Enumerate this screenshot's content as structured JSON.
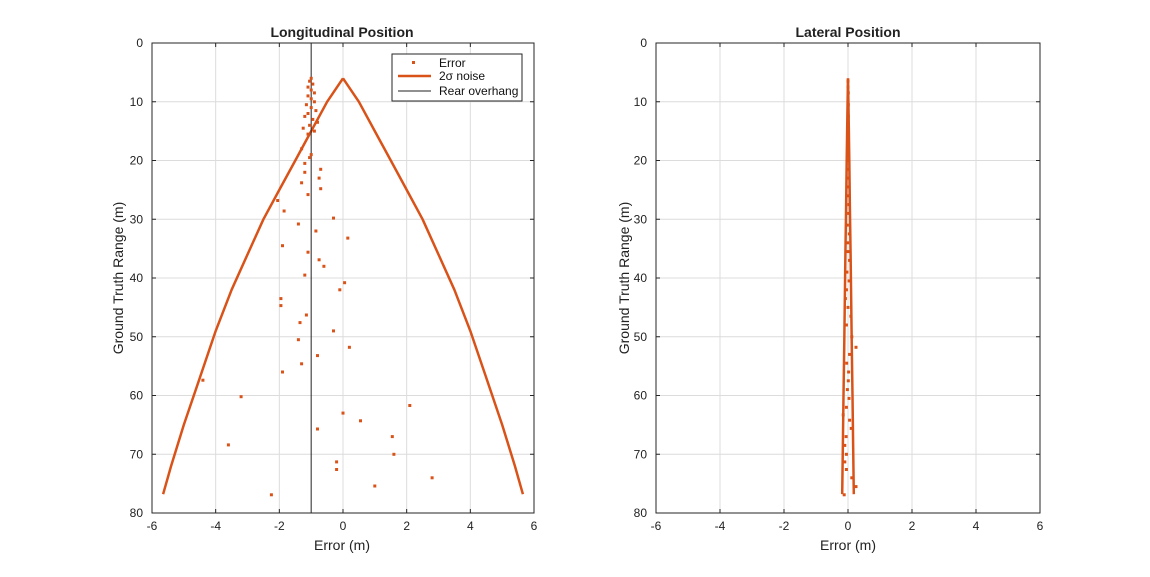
{
  "colors": {
    "series": "#D95319",
    "overhang": "#222222",
    "grid": "#dcdcdc",
    "axis": "#262626"
  },
  "chart_data": [
    {
      "type": "scatter",
      "title": "Longitudinal Position",
      "xlabel": "Error (m)",
      "ylabel": "Ground Truth Range (m)",
      "xlim": [
        -6,
        6
      ],
      "ylim": [
        0,
        80
      ],
      "y_reversed": true,
      "grid": true,
      "legend_position": "top-right",
      "xticks": [
        "-6",
        "-4",
        "-2",
        "0",
        "2",
        "4",
        "6"
      ],
      "yticks": [
        "0",
        "10",
        "20",
        "30",
        "40",
        "50",
        "60",
        "70",
        "80"
      ],
      "legend": [
        "Error",
        "2σ  noise",
        "Rear overhang"
      ],
      "error_points": [
        [
          -1.0,
          6.0
        ],
        [
          -1.05,
          6.5
        ],
        [
          -0.95,
          7.0
        ],
        [
          -1.1,
          7.5
        ],
        [
          -1.0,
          8.0
        ],
        [
          -0.9,
          8.5
        ],
        [
          -1.1,
          9.0
        ],
        [
          -1.0,
          9.5
        ],
        [
          -0.9,
          10.0
        ],
        [
          -1.15,
          10.5
        ],
        [
          -1.0,
          11.0
        ],
        [
          -0.85,
          11.5
        ],
        [
          -1.1,
          12.0
        ],
        [
          -1.2,
          12.5
        ],
        [
          -0.95,
          13.0
        ],
        [
          -0.8,
          13.5
        ],
        [
          -1.05,
          14.0
        ],
        [
          -1.25,
          14.5
        ],
        [
          -0.9,
          15.0
        ],
        [
          -1.1,
          15.5
        ],
        [
          -1.3,
          18.0
        ],
        [
          -1.0,
          19.0
        ],
        [
          -1.05,
          19.5
        ],
        [
          -1.2,
          20.5
        ],
        [
          -0.7,
          21.5
        ],
        [
          -1.2,
          22.0
        ],
        [
          -0.75,
          23.0
        ],
        [
          -1.3,
          23.8
        ],
        [
          -0.7,
          24.8
        ],
        [
          -1.1,
          25.8
        ],
        [
          -2.05,
          26.8
        ],
        [
          -1.85,
          28.6
        ],
        [
          -0.3,
          29.8
        ],
        [
          -1.4,
          30.8
        ],
        [
          -0.85,
          32.0
        ],
        [
          0.15,
          33.2
        ],
        [
          -1.9,
          34.5
        ],
        [
          -1.1,
          35.6
        ],
        [
          -0.75,
          36.9
        ],
        [
          -0.6,
          38.0
        ],
        [
          -1.2,
          39.5
        ],
        [
          0.05,
          40.8
        ],
        [
          -0.1,
          42.0
        ],
        [
          -1.95,
          43.5
        ],
        [
          -1.95,
          44.7
        ],
        [
          -1.15,
          46.3
        ],
        [
          -1.35,
          47.6
        ],
        [
          -0.3,
          49.0
        ],
        [
          -1.4,
          50.5
        ],
        [
          0.2,
          51.8
        ],
        [
          -0.8,
          53.2
        ],
        [
          -1.3,
          54.6
        ],
        [
          -1.9,
          56.0
        ],
        [
          -4.4,
          57.4
        ],
        [
          -3.2,
          60.2
        ],
        [
          2.1,
          61.7
        ],
        [
          0.0,
          63.0
        ],
        [
          0.55,
          64.3
        ],
        [
          -0.8,
          65.7
        ],
        [
          1.55,
          67.0
        ],
        [
          -3.6,
          68.4
        ],
        [
          1.6,
          70.0
        ],
        [
          -0.2,
          71.3
        ],
        [
          -0.2,
          72.6
        ],
        [
          2.8,
          74.0
        ],
        [
          1.0,
          75.4
        ],
        [
          -2.25,
          76.9
        ]
      ],
      "noise_curve": {
        "upper": [
          [
            0.0,
            6.0
          ],
          [
            0.5,
            10.0
          ],
          [
            1.0,
            15.0
          ],
          [
            1.5,
            20.0
          ],
          [
            2.0,
            25.0
          ],
          [
            2.5,
            30.0
          ],
          [
            3.0,
            36.0
          ],
          [
            3.5,
            42.0
          ],
          [
            4.0,
            49.0
          ],
          [
            4.5,
            57.0
          ],
          [
            5.0,
            65.0
          ],
          [
            5.4,
            72.0
          ],
          [
            5.65,
            76.8
          ]
        ],
        "lower": [
          [
            0.0,
            6.0
          ],
          [
            -0.5,
            10.0
          ],
          [
            -1.0,
            15.0
          ],
          [
            -1.5,
            20.0
          ],
          [
            -2.0,
            25.0
          ],
          [
            -2.5,
            30.0
          ],
          [
            -3.0,
            36.0
          ],
          [
            -3.5,
            42.0
          ],
          [
            -4.0,
            49.0
          ],
          [
            -4.5,
            57.0
          ],
          [
            -5.0,
            65.0
          ],
          [
            -5.4,
            72.0
          ],
          [
            -5.65,
            76.8
          ]
        ]
      },
      "rear_overhang_x": -1.0
    },
    {
      "type": "scatter",
      "title": "Lateral Position",
      "xlabel": "Error (m)",
      "ylabel": "Ground Truth Range (m)",
      "xlim": [
        -6,
        6
      ],
      "ylim": [
        0,
        80
      ],
      "y_reversed": true,
      "grid": true,
      "xticks": [
        "-6",
        "-4",
        "-2",
        "0",
        "2",
        "4",
        "6"
      ],
      "yticks": [
        "0",
        "10",
        "20",
        "30",
        "40",
        "50",
        "60",
        "70",
        "80"
      ],
      "error_points": [
        [
          0.0,
          6.5
        ],
        [
          0.0,
          7.5
        ],
        [
          0.01,
          8.5
        ],
        [
          0.0,
          9.5
        ],
        [
          0.01,
          10.5
        ],
        [
          0.0,
          11.5
        ],
        [
          0.01,
          12.5
        ],
        [
          0.0,
          13.5
        ],
        [
          0.01,
          14.5
        ],
        [
          0.0,
          15.5
        ],
        [
          0.01,
          17.0
        ],
        [
          0.0,
          18.5
        ],
        [
          0.02,
          20.0
        ],
        [
          0.0,
          21.5
        ],
        [
          0.03,
          23.0
        ],
        [
          0.01,
          24.5
        ],
        [
          0.0,
          26.0
        ],
        [
          0.03,
          27.5
        ],
        [
          0.02,
          29.0
        ],
        [
          -0.02,
          31.0
        ],
        [
          0.04,
          32.5
        ],
        [
          -0.01,
          34.0
        ],
        [
          0.0,
          35.5
        ],
        [
          0.05,
          37.0
        ],
        [
          -0.03,
          39.0
        ],
        [
          0.03,
          40.5
        ],
        [
          -0.05,
          42.0
        ],
        [
          -0.08,
          43.5
        ],
        [
          0.0,
          45.0
        ],
        [
          0.09,
          46.5
        ],
        [
          -0.05,
          48.0
        ],
        [
          0.12,
          50.0
        ],
        [
          0.25,
          51.8
        ],
        [
          0.05,
          53.0
        ],
        [
          -0.04,
          54.5
        ],
        [
          0.02,
          56.0
        ],
        [
          0.01,
          57.5
        ],
        [
          -0.02,
          59.0
        ],
        [
          0.03,
          60.5
        ],
        [
          -0.05,
          62.0
        ],
        [
          -0.15,
          63.3
        ],
        [
          0.05,
          64.2
        ],
        [
          0.1,
          65.6
        ],
        [
          -0.06,
          67.0
        ],
        [
          -0.1,
          68.5
        ],
        [
          -0.05,
          70.0
        ],
        [
          -0.1,
          71.3
        ],
        [
          -0.05,
          72.6
        ],
        [
          0.12,
          74.0
        ],
        [
          0.25,
          75.5
        ],
        [
          -0.12,
          76.9
        ]
      ],
      "noise_curve": {
        "upper": [
          [
            0.0,
            6.0
          ],
          [
            0.02,
            12.0
          ],
          [
            0.04,
            20.0
          ],
          [
            0.06,
            28.0
          ],
          [
            0.08,
            36.0
          ],
          [
            0.1,
            44.0
          ],
          [
            0.12,
            52.0
          ],
          [
            0.14,
            60.0
          ],
          [
            0.16,
            68.0
          ],
          [
            0.18,
            76.8
          ]
        ],
        "lower": [
          [
            0.0,
            6.0
          ],
          [
            -0.02,
            12.0
          ],
          [
            -0.04,
            20.0
          ],
          [
            -0.06,
            28.0
          ],
          [
            -0.08,
            36.0
          ],
          [
            -0.1,
            44.0
          ],
          [
            -0.12,
            52.0
          ],
          [
            -0.14,
            60.0
          ],
          [
            -0.16,
            68.0
          ],
          [
            -0.18,
            76.8
          ]
        ]
      }
    }
  ]
}
